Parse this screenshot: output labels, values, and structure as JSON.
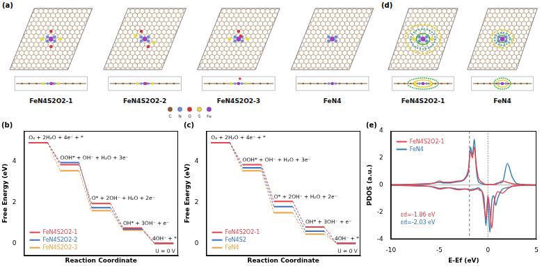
{
  "structures": [
    {
      "title": "(a)",
      "items": [
        "FeN4S2O2-1",
        "FeN4S2O2-2",
        "FeN4S2O2-3",
        "FeN4"
      ],
      "elements": [
        {
          "symbol": "C",
          "color": "#8b5a2b"
        },
        {
          "symbol": "N",
          "color": "#6f8fd8"
        },
        {
          "symbol": "O",
          "color": "#e03030"
        },
        {
          "symbol": "S",
          "color": "#e8d84a"
        },
        {
          "symbol": "Fe",
          "color": "#9a40c0"
        }
      ]
    },
    {
      "title": "(d)",
      "items": [
        "FeN4S2O2-1",
        "FeN4"
      ]
    }
  ],
  "chart_data": [
    {
      "type": "line",
      "title": "(b)",
      "x_label": "Reaction Coordinate",
      "y_label": "Free Energy (eV)",
      "categories": [
        "O₂ + 2H₂O + 4e⁻ + *",
        "OOH* + OH⁻ + H₂O + 3e⁻",
        "O* + 2OH⁻ + H₂O + 2e⁻",
        "OH* + 3OH⁻ + e⁻",
        "4OH⁻ + *"
      ],
      "series": [
        {
          "name": "FeN4S2O2-1",
          "color": "#e8424a",
          "values": [
            4.92,
            3.85,
            1.95,
            0.75,
            0
          ]
        },
        {
          "name": "FeN4S2O2-2",
          "color": "#3a6fc4",
          "values": [
            4.92,
            3.95,
            1.75,
            0.7,
            0
          ]
        },
        {
          "name": "FeN4S2O2-3",
          "color": "#f0a03c",
          "values": [
            4.92,
            3.55,
            1.6,
            0.65,
            0
          ]
        }
      ],
      "ylim": [
        -0.6,
        5.5
      ],
      "yticks": [
        0,
        2,
        4
      ],
      "annotations": [
        "U = 0 V"
      ],
      "legend": "lower left",
      "grid": false,
      "tick_labels": "y"
    },
    {
      "type": "line",
      "title": "(c)",
      "x_label": "Reaction Coordinate",
      "y_label": "Free Energy (eV)",
      "categories": [
        "O₂ + 2H₂O + 4e⁻ + *",
        "OOH* + OH⁻ + H₂O + 3e⁻",
        "O* + 2OH⁻ + H₂O + 2e⁻",
        "OH* + 3OH⁻ + e⁻",
        "4OH⁻ + *"
      ],
      "series": [
        {
          "name": "FeN4S2O2-1",
          "color": "#e8424a",
          "values": [
            4.92,
            3.85,
            2.05,
            0.8,
            0
          ]
        },
        {
          "name": "FeN4S2",
          "color": "#3a6fc4",
          "values": [
            4.92,
            3.7,
            1.8,
            0.6,
            0
          ]
        },
        {
          "name": "FeN4",
          "color": "#f0a03c",
          "values": [
            4.92,
            3.55,
            1.5,
            0.45,
            0
          ]
        }
      ],
      "ylim": [
        -0.6,
        5.5
      ],
      "yticks": [
        0,
        2,
        4
      ],
      "annotations": [
        "U = 0 V"
      ],
      "legend": "lower left",
      "grid": false,
      "tick_labels": "y"
    },
    {
      "type": "line",
      "title": "(e)",
      "x_label": "E-Ef (eV)",
      "y_label": "PDOS (a.u.)",
      "x": [
        -10,
        -9,
        -8,
        -7,
        -6,
        -5.5,
        -5,
        -4.5,
        -4,
        -3.5,
        -3,
        -2.5,
        -2.2,
        -2,
        -1.8,
        -1.6,
        -1.4,
        -1.2,
        -1,
        -0.8,
        -0.6,
        -0.4,
        -0.2,
        0,
        0.2,
        0.4,
        0.6,
        0.8,
        1,
        1.5,
        2,
        2.5,
        3,
        3.5,
        4,
        5
      ],
      "series": [
        {
          "name": "FeN4S2O2-1",
          "color": "#e8424a",
          "values": [
            0.02,
            0.03,
            0.05,
            0.08,
            0.1,
            0.15,
            0.3,
            0.2,
            0.2,
            0.25,
            0.3,
            0.4,
            0.7,
            1.2,
            2.5,
            2.0,
            2.8,
            1.5,
            0.6,
            0.3,
            0.2,
            0.1,
            0.05,
            0.05,
            0.05,
            0.05,
            0.05,
            0.05,
            0.1,
            0.3,
            0.2,
            0.1,
            0.05,
            0.03,
            0.02,
            0.01
          ],
          "values_down": [
            -0.02,
            -0.03,
            -0.05,
            -0.08,
            -0.1,
            -0.2,
            -0.3,
            -0.25,
            -0.2,
            -0.3,
            -0.35,
            -0.3,
            -0.3,
            -0.35,
            -0.4,
            -0.4,
            -0.35,
            -0.3,
            -0.3,
            -0.4,
            -0.5,
            -1.5,
            -2.5,
            -0.8,
            -1.8,
            -3.2,
            -1.5,
            -0.8,
            -0.5,
            -0.6,
            -0.3,
            -0.1,
            -0.05,
            -0.03,
            -0.02,
            -0.01
          ]
        },
        {
          "name": "FeN4",
          "color": "#2f76b8",
          "values": [
            0.02,
            0.03,
            0.05,
            0.05,
            0.1,
            0.15,
            0.2,
            0.15,
            0.15,
            0.2,
            0.25,
            0.35,
            0.6,
            1.0,
            2.8,
            2.2,
            3.4,
            1.2,
            0.3,
            0.15,
            0.1,
            0.05,
            0.05,
            0.05,
            0.05,
            0.05,
            0.05,
            0.1,
            0.15,
            0.2,
            1.6,
            0.6,
            0.1,
            0.05,
            0.02,
            0.01
          ],
          "values_down": [
            -0.02,
            -0.03,
            -0.05,
            -0.05,
            -0.1,
            -0.15,
            -0.25,
            -0.2,
            -0.2,
            -0.25,
            -0.3,
            -0.3,
            -0.3,
            -0.3,
            -0.35,
            -0.3,
            -0.3,
            -0.25,
            -0.2,
            -0.3,
            -0.5,
            -1.0,
            -3.0,
            -1.0,
            -3.5,
            -1.2,
            -0.8,
            -1.5,
            -1.0,
            -0.3,
            -0.2,
            -0.1,
            -0.05,
            -0.03,
            -0.02,
            -0.01
          ]
        }
      ],
      "xlim": [
        -10,
        5
      ],
      "xticks": [
        -10,
        -5,
        0,
        5
      ],
      "ylim": [
        -4,
        4
      ],
      "yticks": [
        -4,
        -2,
        0,
        2,
        4
      ],
      "vlines": [
        -1.9,
        0
      ],
      "annotations": [
        {
          "text": "εd=-1.86 eV",
          "color": "#e8424a"
        },
        {
          "text": "εd=-2.03 eV",
          "color": "#2f76b8"
        }
      ],
      "legend": "upper left",
      "grid": false
    }
  ]
}
